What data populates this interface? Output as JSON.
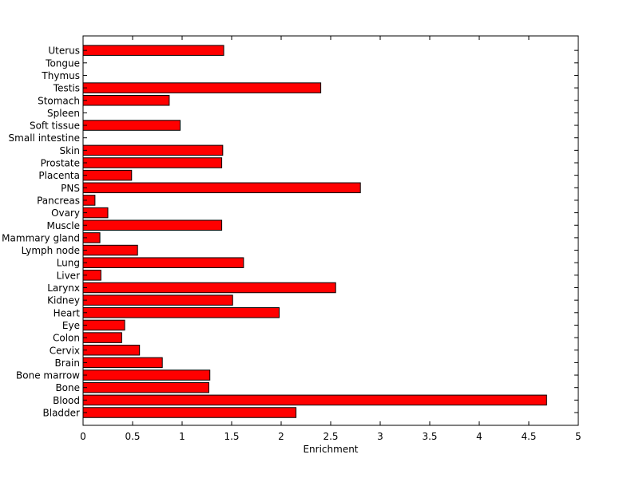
{
  "chart_data": {
    "type": "bar",
    "orientation": "horizontal",
    "title": "",
    "xlabel": "Enrichment",
    "ylabel": "",
    "xlim": [
      0,
      5
    ],
    "xticks": [
      "0",
      "0.5",
      "1",
      "1.5",
      "2",
      "2.5",
      "3",
      "3.5",
      "4",
      "4.5",
      "5"
    ],
    "grid": false,
    "bar_color": "#ff0000",
    "categories": [
      "Bladder",
      "Blood",
      "Bone",
      "Bone marrow",
      "Brain",
      "Cervix",
      "Colon",
      "Eye",
      "Heart",
      "Kidney",
      "Larynx",
      "Liver",
      "Lung",
      "Lymph node",
      "Mammary gland",
      "Muscle",
      "Ovary",
      "Pancreas",
      "PNS",
      "Placenta",
      "Prostate",
      "Skin",
      "Small intestine",
      "Soft tissue",
      "Spleen",
      "Stomach",
      "Testis",
      "Thymus",
      "Tongue",
      "Uterus"
    ],
    "values": [
      2.15,
      4.68,
      1.27,
      1.28,
      0.8,
      0.57,
      0.39,
      0.42,
      1.98,
      1.51,
      2.55,
      0.18,
      1.62,
      0.55,
      0.17,
      1.4,
      0.25,
      0.12,
      2.8,
      0.49,
      1.4,
      1.41,
      0,
      0.98,
      0,
      0.87,
      2.4,
      0,
      0,
      1.42
    ]
  }
}
